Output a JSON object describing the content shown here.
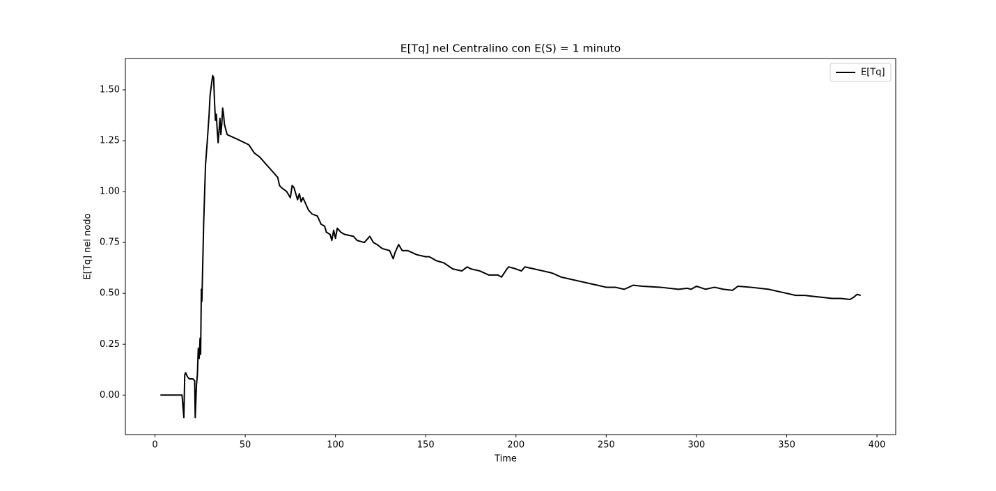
{
  "chart_data": {
    "type": "line",
    "title": "E[Tq] nel Centralino con E(S) = 1 minuto",
    "xlabel": "Time",
    "ylabel": "E[Tq] nel nodo",
    "x": [
      3,
      15,
      16,
      16.5,
      17,
      18,
      19,
      21,
      22,
      22.3,
      23,
      23.5,
      24,
      24.5,
      25,
      25.3,
      25.7,
      26,
      27,
      28,
      29,
      30,
      30.5,
      31.5,
      32,
      32.5,
      33,
      33.5,
      34,
      34.5,
      35,
      36,
      36.5,
      37,
      37.5,
      38,
      38.5,
      40,
      45,
      52,
      55,
      58,
      60,
      62,
      65,
      68,
      69,
      70,
      73,
      75,
      76,
      77,
      79,
      80,
      81,
      82,
      85,
      87,
      90,
      92,
      94,
      95,
      97,
      98,
      99,
      100,
      101,
      103,
      105,
      110,
      112,
      116,
      118,
      119,
      121,
      123,
      126,
      130,
      132,
      133,
      135,
      137,
      140,
      145,
      150,
      152,
      156,
      160,
      165,
      170,
      173,
      175,
      180,
      185,
      190,
      192,
      195,
      196,
      200,
      203,
      205,
      210,
      215,
      220,
      225,
      230,
      235,
      240,
      245,
      250,
      255,
      260,
      265,
      270,
      280,
      290,
      295,
      297,
      300,
      305,
      310,
      315,
      320,
      323,
      330,
      340,
      345,
      350,
      355,
      360,
      365,
      370,
      375,
      380,
      385,
      387,
      389,
      391
    ],
    "series": [
      {
        "name": "E[Tq]",
        "color": "#000000",
        "values": [
          0,
          0,
          -0.11,
          0.1,
          0.11,
          0.09,
          0.08,
          0.08,
          0.07,
          -0.11,
          0.05,
          0.1,
          0.23,
          0.18,
          0.28,
          0.2,
          0.52,
          0.46,
          0.85,
          1.13,
          1.25,
          1.38,
          1.47,
          1.54,
          1.57,
          1.56,
          1.44,
          1.35,
          1.38,
          1.3,
          1.24,
          1.36,
          1.28,
          1.33,
          1.41,
          1.38,
          1.33,
          1.28,
          1.26,
          1.23,
          1.19,
          1.17,
          1.15,
          1.13,
          1.1,
          1.07,
          1.03,
          1.02,
          1.0,
          0.97,
          1.03,
          1.02,
          0.96,
          0.99,
          0.95,
          0.97,
          0.91,
          0.89,
          0.88,
          0.84,
          0.83,
          0.8,
          0.79,
          0.76,
          0.81,
          0.77,
          0.82,
          0.8,
          0.79,
          0.78,
          0.76,
          0.75,
          0.77,
          0.78,
          0.75,
          0.74,
          0.72,
          0.71,
          0.67,
          0.7,
          0.74,
          0.71,
          0.71,
          0.69,
          0.68,
          0.68,
          0.66,
          0.65,
          0.62,
          0.61,
          0.63,
          0.62,
          0.61,
          0.59,
          0.59,
          0.58,
          0.62,
          0.63,
          0.62,
          0.61,
          0.63,
          0.62,
          0.61,
          0.6,
          0.58,
          0.57,
          0.56,
          0.55,
          0.54,
          0.53,
          0.53,
          0.52,
          0.54,
          0.535,
          0.53,
          0.52,
          0.525,
          0.52,
          0.535,
          0.52,
          0.53,
          0.52,
          0.515,
          0.535,
          0.53,
          0.52,
          0.51,
          0.5,
          0.49,
          0.49,
          0.485,
          0.48,
          0.475,
          0.475,
          0.47,
          0.48,
          0.495,
          0.49
        ]
      }
    ],
    "xlim": [
      -16.4,
      410.4
    ],
    "xticks": [
      0,
      50,
      100,
      150,
      200,
      250,
      300,
      350,
      400
    ],
    "ylim": [
      -0.194,
      1.654
    ],
    "yticks": [
      {
        "value": 0,
        "label": "0.00"
      },
      {
        "value": 0.25,
        "label": "0.25"
      },
      {
        "value": 0.5,
        "label": "0.50"
      },
      {
        "value": 0.75,
        "label": "0.75"
      },
      {
        "value": 1,
        "label": "1.00"
      },
      {
        "value": 1.25,
        "label": "1.25"
      },
      {
        "value": 1.5,
        "label": "1.50"
      }
    ],
    "legend": "upper right",
    "grid": false
  }
}
